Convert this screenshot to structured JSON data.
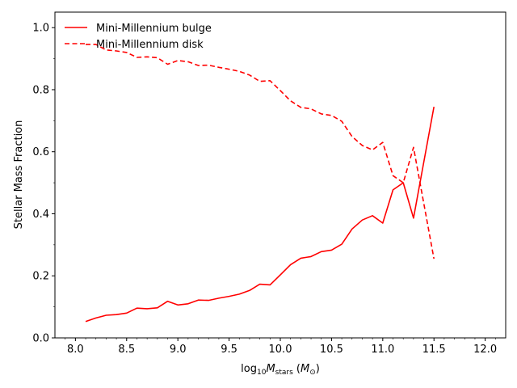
{
  "chart_data": {
    "type": "line",
    "xlabel_prefix": "log",
    "xlabel_sub1": "10",
    "xlabel_main": "M",
    "xlabel_sub2": "stars",
    "xlabel_unit_open": " (",
    "xlabel_unit_main": "M",
    "xlabel_unit_sub": "⊙",
    "xlabel_unit_close": ")",
    "ylabel": "Stellar Mass Fraction",
    "xlim": [
      7.8,
      12.2
    ],
    "ylim": [
      0.0,
      1.05
    ],
    "xticks": [
      8.0,
      8.5,
      9.0,
      9.5,
      10.0,
      10.5,
      11.0,
      11.5,
      12.0
    ],
    "xtick_labels": [
      "8.0",
      "8.5",
      "9.0",
      "9.5",
      "10.0",
      "10.5",
      "11.0",
      "11.5",
      "12.0"
    ],
    "yticks": [
      0.0,
      0.2,
      0.4,
      0.6,
      0.8,
      1.0
    ],
    "ytick_labels": [
      "0.0",
      "0.2",
      "0.4",
      "0.6",
      "0.8",
      "1.0"
    ],
    "legend_position": "top-left",
    "series": [
      {
        "name": "Mini-Millennium bulge",
        "color": "#ff0000",
        "style": "solid",
        "x": [
          8.1,
          8.2,
          8.3,
          8.4,
          8.5,
          8.6,
          8.7,
          8.8,
          8.9,
          9.0,
          9.1,
          9.2,
          9.3,
          9.4,
          9.5,
          9.6,
          9.7,
          9.8,
          9.9,
          10.0,
          10.1,
          10.2,
          10.3,
          10.4,
          10.5,
          10.6,
          10.7,
          10.8,
          10.9,
          11.0,
          11.1,
          11.2,
          11.3,
          11.4,
          11.5
        ],
        "y": [
          0.053,
          0.064,
          0.073,
          0.075,
          0.08,
          0.096,
          0.094,
          0.097,
          0.118,
          0.106,
          0.11,
          0.122,
          0.121,
          0.128,
          0.134,
          0.141,
          0.153,
          0.173,
          0.171,
          0.203,
          0.236,
          0.257,
          0.262,
          0.278,
          0.283,
          0.302,
          0.351,
          0.38,
          0.394,
          0.37,
          0.477,
          0.5,
          0.386,
          0.565,
          0.745
        ]
      },
      {
        "name": "Mini-Millennium disk",
        "color": "#ff0000",
        "style": "dashed",
        "x": [
          8.1,
          8.2,
          8.3,
          8.4,
          8.5,
          8.6,
          8.7,
          8.8,
          8.9,
          9.0,
          9.1,
          9.2,
          9.3,
          9.4,
          9.5,
          9.6,
          9.7,
          9.8,
          9.9,
          10.0,
          10.1,
          10.2,
          10.3,
          10.4,
          10.5,
          10.6,
          10.7,
          10.8,
          10.9,
          11.0,
          11.1,
          11.2,
          11.3,
          11.4,
          11.5
        ],
        "y": [
          0.946,
          0.946,
          0.928,
          0.925,
          0.92,
          0.904,
          0.906,
          0.903,
          0.882,
          0.894,
          0.89,
          0.878,
          0.879,
          0.872,
          0.866,
          0.859,
          0.847,
          0.827,
          0.829,
          0.797,
          0.764,
          0.743,
          0.738,
          0.722,
          0.717,
          0.698,
          0.649,
          0.62,
          0.606,
          0.63,
          0.523,
          0.5,
          0.614,
          0.435,
          0.255
        ]
      }
    ]
  }
}
